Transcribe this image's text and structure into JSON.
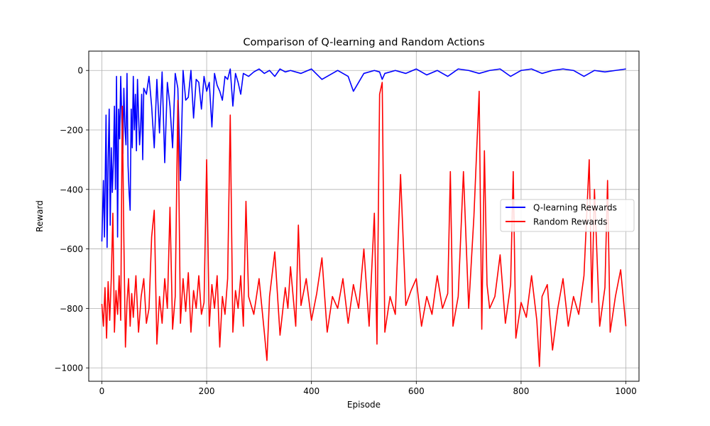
{
  "chart_data": {
    "type": "line",
    "title": "Comparison of Q-learning and Random Actions",
    "xlabel": "Episode",
    "ylabel": "Reward",
    "xlim": [
      -25,
      1025
    ],
    "ylim": [
      -1045,
      65
    ],
    "xticks": [
      0,
      200,
      400,
      600,
      800,
      1000
    ],
    "yticks": [
      0,
      -200,
      -400,
      -600,
      -800,
      -1000
    ],
    "xtick_labels": [
      "0",
      "200",
      "400",
      "600",
      "800",
      "1000"
    ],
    "ytick_labels": [
      "0",
      "−200",
      "−400",
      "−600",
      "−800",
      "−1000"
    ],
    "grid": true,
    "legend_position": "center-right",
    "series": [
      {
        "name": "Q-learning Rewards",
        "color": "#0000ff",
        "x": [
          0,
          3,
          5,
          8,
          10,
          12,
          14,
          16,
          18,
          20,
          22,
          24,
          26,
          28,
          30,
          32,
          34,
          36,
          38,
          40,
          42,
          44,
          46,
          48,
          50,
          52,
          54,
          56,
          58,
          60,
          62,
          64,
          66,
          68,
          70,
          72,
          74,
          76,
          78,
          80,
          85,
          90,
          95,
          100,
          105,
          110,
          115,
          120,
          125,
          130,
          135,
          140,
          145,
          150,
          155,
          160,
          165,
          170,
          175,
          180,
          185,
          190,
          195,
          200,
          205,
          210,
          215,
          220,
          225,
          230,
          235,
          240,
          245,
          250,
          255,
          260,
          265,
          270,
          280,
          290,
          300,
          310,
          320,
          330,
          340,
          350,
          360,
          380,
          400,
          420,
          450,
          470,
          480,
          500,
          520,
          530,
          535,
          540,
          560,
          580,
          600,
          620,
          640,
          660,
          680,
          700,
          720,
          740,
          760,
          780,
          800,
          820,
          840,
          860,
          880,
          900,
          920,
          940,
          960,
          980,
          1000
        ],
        "values": [
          -575,
          -370,
          -560,
          -150,
          -595,
          -300,
          -130,
          -520,
          -260,
          -410,
          -300,
          -120,
          -400,
          -20,
          -560,
          -130,
          -230,
          -20,
          -160,
          -280,
          -60,
          -190,
          -250,
          -10,
          -320,
          -410,
          -470,
          -130,
          -260,
          -20,
          -200,
          -80,
          -270,
          -30,
          -150,
          -250,
          -190,
          -80,
          -300,
          -60,
          -80,
          -20,
          -120,
          -260,
          -30,
          -210,
          -5,
          -310,
          -40,
          -120,
          -260,
          -10,
          -60,
          -370,
          0,
          -100,
          -90,
          0,
          -160,
          -30,
          -40,
          -130,
          -20,
          -70,
          -40,
          -190,
          -10,
          -50,
          -70,
          -100,
          -20,
          -30,
          5,
          -120,
          -10,
          -40,
          -80,
          -10,
          -20,
          -5,
          5,
          -10,
          0,
          -20,
          5,
          -5,
          0,
          -10,
          5,
          -30,
          0,
          -20,
          -70,
          -10,
          0,
          -5,
          -30,
          -10,
          0,
          -10,
          5,
          -15,
          0,
          -20,
          5,
          0,
          -10,
          0,
          5,
          -20,
          0,
          5,
          -10,
          0,
          5,
          0,
          -20,
          0,
          -5,
          0,
          5
        ]
      },
      {
        "name": "Random Rewards",
        "color": "#ff0000",
        "x": [
          0,
          3,
          6,
          9,
          12,
          15,
          18,
          21,
          24,
          27,
          30,
          33,
          36,
          39,
          42,
          45,
          48,
          51,
          54,
          57,
          60,
          65,
          70,
          75,
          80,
          85,
          90,
          95,
          100,
          105,
          110,
          115,
          120,
          125,
          130,
          135,
          140,
          145,
          150,
          155,
          160,
          165,
          170,
          175,
          180,
          185,
          190,
          195,
          200,
          205,
          210,
          215,
          220,
          225,
          230,
          235,
          240,
          245,
          250,
          255,
          260,
          265,
          270,
          275,
          280,
          290,
          300,
          310,
          315,
          320,
          330,
          340,
          350,
          355,
          360,
          370,
          375,
          380,
          390,
          400,
          410,
          420,
          430,
          440,
          450,
          460,
          470,
          480,
          490,
          500,
          510,
          520,
          525,
          530,
          535,
          540,
          550,
          560,
          570,
          580,
          590,
          600,
          610,
          620,
          630,
          640,
          650,
          660,
          665,
          670,
          680,
          690,
          700,
          710,
          720,
          725,
          730,
          735,
          740,
          750,
          760,
          770,
          780,
          785,
          790,
          800,
          810,
          820,
          830,
          835,
          840,
          850,
          860,
          870,
          880,
          890,
          900,
          910,
          920,
          930,
          935,
          940,
          950,
          960,
          965,
          970,
          980,
          990,
          1000
        ],
        "values": [
          -785,
          -860,
          -730,
          -900,
          -710,
          -840,
          -700,
          -480,
          -880,
          -740,
          -820,
          -690,
          -840,
          -120,
          -570,
          -930,
          -780,
          -700,
          -860,
          -750,
          -830,
          -690,
          -880,
          -760,
          -700,
          -850,
          -800,
          -560,
          -470,
          -920,
          -760,
          -850,
          -700,
          -800,
          -460,
          -870,
          -760,
          -100,
          -850,
          -700,
          -810,
          -680,
          -880,
          -740,
          -800,
          -690,
          -820,
          -780,
          -300,
          -860,
          -720,
          -800,
          -690,
          -930,
          -760,
          -820,
          -700,
          -150,
          -880,
          -740,
          -800,
          -690,
          -860,
          -440,
          -760,
          -820,
          -700,
          -880,
          -975,
          -760,
          -610,
          -890,
          -730,
          -800,
          -660,
          -860,
          -520,
          -790,
          -700,
          -840,
          -750,
          -630,
          -880,
          -760,
          -800,
          -700,
          -850,
          -720,
          -800,
          -600,
          -860,
          -480,
          -920,
          -80,
          -40,
          -880,
          -760,
          -820,
          -350,
          -790,
          -740,
          -700,
          -860,
          -760,
          -820,
          -690,
          -800,
          -750,
          -340,
          -860,
          -760,
          -340,
          -800,
          -490,
          -70,
          -870,
          -270,
          -720,
          -800,
          -760,
          -620,
          -850,
          -720,
          -340,
          -900,
          -780,
          -830,
          -690,
          -840,
          -995,
          -760,
          -720,
          -940,
          -800,
          -700,
          -860,
          -760,
          -820,
          -690,
          -300,
          -780,
          -400,
          -860,
          -730,
          -370,
          -880,
          -760,
          -670,
          -860
        ]
      }
    ]
  }
}
